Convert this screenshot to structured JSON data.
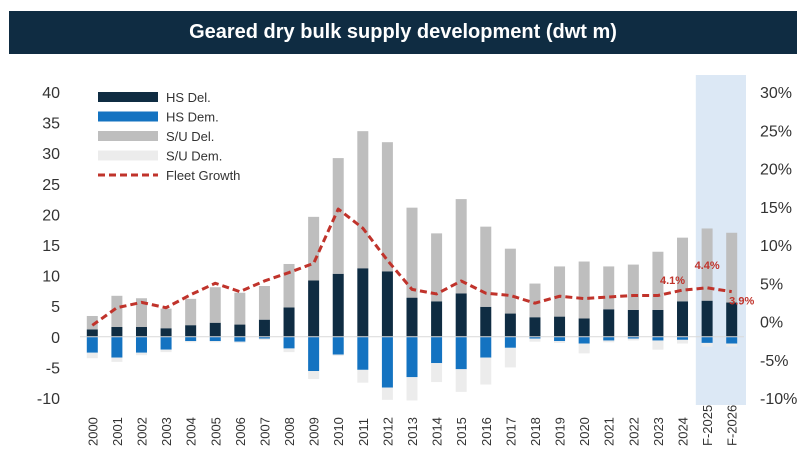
{
  "chart_data": {
    "type": "bar",
    "title": "Geared dry bulk supply development (dwt m)",
    "categories": [
      "2000",
      "2001",
      "2002",
      "2003",
      "2004",
      "2005",
      "2006",
      "2007",
      "2008",
      "2009",
      "2010",
      "2011",
      "2012",
      "2013",
      "2014",
      "2015",
      "2016",
      "2017",
      "2018",
      "2019",
      "2020",
      "2021",
      "2022",
      "2023",
      "2024",
      "F-2025",
      "F-2026"
    ],
    "series": [
      {
        "name": "HS Del.",
        "color": "#0f2c42",
        "axis": "left",
        "values": [
          1.2,
          1.6,
          1.6,
          1.4,
          1.9,
          2.3,
          2.0,
          2.8,
          4.8,
          9.2,
          10.3,
          11.2,
          10.7,
          6.4,
          5.8,
          7.1,
          4.9,
          3.8,
          3.2,
          3.3,
          3.0,
          4.5,
          4.4,
          4.4,
          5.8,
          5.9,
          5.6
        ]
      },
      {
        "name": "HS Dem.",
        "color": "#1473c1",
        "axis": "left",
        "values": [
          -2.6,
          -3.4,
          -2.6,
          -2.1,
          -0.7,
          -0.7,
          -0.8,
          -0.3,
          -1.9,
          -5.6,
          -2.9,
          -5.4,
          -8.3,
          -6.6,
          -4.3,
          -5.3,
          -3.4,
          -1.8,
          -0.3,
          -0.7,
          -1.1,
          -0.6,
          -0.3,
          -0.6,
          -0.5,
          -1.0,
          -1.1
        ]
      },
      {
        "name": "S/U Del.",
        "color": "#bebebe",
        "axis": "left",
        "values": [
          2.2,
          5.1,
          4.7,
          3.2,
          4.3,
          5.8,
          5.2,
          5.5,
          7.1,
          10.4,
          18.9,
          22.4,
          21.1,
          14.7,
          11.1,
          15.4,
          13.1,
          10.6,
          5.5,
          8.2,
          9.3,
          7.0,
          7.4,
          9.5,
          10.4,
          11.8,
          11.4
        ]
      },
      {
        "name": "S/U Dem.",
        "color": "#ececec",
        "axis": "left",
        "values": [
          -0.9,
          -0.7,
          -0.4,
          -0.4,
          -0.2,
          -0.2,
          -0.2,
          -0.2,
          -0.6,
          -1.3,
          -0.2,
          -2.1,
          -2.0,
          -3.8,
          -3.1,
          -3.7,
          -4.4,
          -3.2,
          -0.5,
          -0.3,
          -1.6,
          -0.3,
          -0.3,
          -1.5,
          -0.6,
          -0.6,
          -0.5
        ]
      },
      {
        "name": "Fleet Growth",
        "color": "#c0332b",
        "axis": "right",
        "type": "line",
        "values": [
          -0.5,
          1.8,
          2.5,
          1.8,
          3.5,
          5.0,
          3.9,
          5.3,
          6.4,
          7.6,
          14.7,
          12.2,
          8.0,
          4.2,
          3.6,
          5.3,
          3.7,
          3.4,
          2.4,
          3.3,
          3.0,
          3.2,
          3.4,
          3.4,
          4.1,
          4.4,
          3.9
        ]
      }
    ],
    "ylim": [
      -10,
      40
    ],
    "yticks": [
      "-10",
      "-5",
      "0",
      "5",
      "10",
      "15",
      "20",
      "25",
      "30",
      "35",
      "40"
    ],
    "y2lim": [
      -10,
      30
    ],
    "y2ticks": [
      "-10%",
      "-5%",
      "0%",
      "5%",
      "10%",
      "15%",
      "20%",
      "25%",
      "30%"
    ],
    "annotations": [
      {
        "category": "2024",
        "text": "4.1%"
      },
      {
        "category": "F-2025",
        "text": "4.4%"
      },
      {
        "category": "F-2026",
        "text": "3.9%"
      }
    ],
    "forecast_highlight": [
      "F-2025",
      "F-2026"
    ],
    "legend_position": "top-left",
    "grid": false
  }
}
